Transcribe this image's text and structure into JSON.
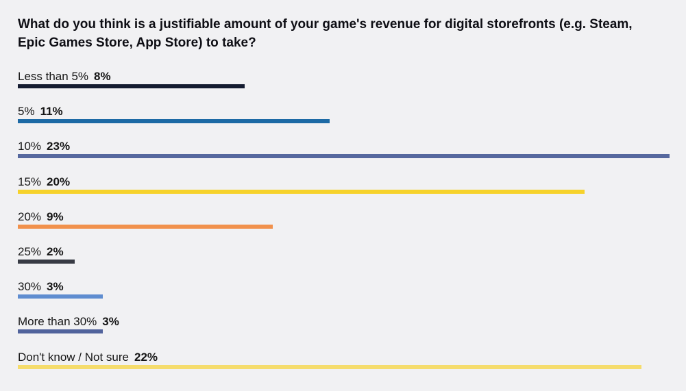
{
  "chart_data": {
    "type": "bar",
    "orientation": "horizontal",
    "title": "What do you think is a justifiable amount of your game's revenue for digital storefronts (e.g. Steam, Epic Games Store, App Store) to take?",
    "categories": [
      "Less than 5%",
      "5%",
      "10%",
      "15%",
      "20%",
      "25%",
      "30%",
      "More than 30%",
      "Don't know / Not sure"
    ],
    "values": [
      8,
      11,
      23,
      20,
      9,
      2,
      3,
      3,
      22
    ],
    "value_labels": [
      "8%",
      "11%",
      "23%",
      "20%",
      "9%",
      "2%",
      "3%",
      "3%",
      "22%"
    ],
    "colors": [
      "#141b30",
      "#1d6aa5",
      "#56689e",
      "#f6d22b",
      "#f1914c",
      "#383b44",
      "#5f8dd0",
      "#51639c",
      "#f5dc6c"
    ],
    "xlim": [
      0,
      23
    ],
    "grid": false,
    "legend": "none"
  }
}
